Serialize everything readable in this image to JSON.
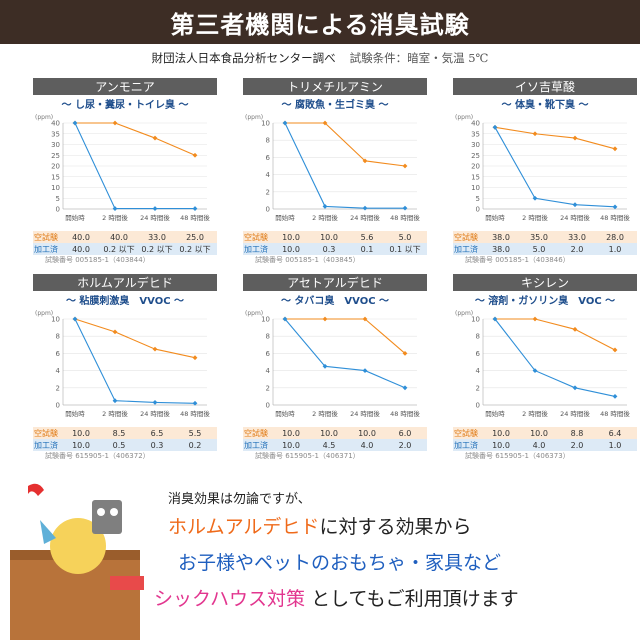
{
  "header": {
    "title": "第三者機関による消臭試験"
  },
  "subtitle": {
    "org": "財団法人日本食品分析センター調べ",
    "condition": "試験条件：暗室・気温 5℃"
  },
  "legend_labels": {
    "blank": "空試験",
    "treated": "加工済"
  },
  "unit_label": "(ppm)",
  "x_labels": [
    "開始時",
    "2 時間後",
    "24 時間後",
    "48 時間後"
  ],
  "colors": {
    "blank": "#f28b1e",
    "treated": "#2f8fd8",
    "title_bg": "#5e5e5e",
    "header_bg": "#3d2d25"
  },
  "chart_data": [
    {
      "type": "line",
      "title": "アンモニア",
      "subtitle": "～ し尿・糞尿・トイレ臭 ～",
      "ylim": [
        0,
        40
      ],
      "yticks": [
        0,
        5,
        10,
        15,
        20,
        25,
        30,
        35,
        40
      ],
      "categories": [
        "開始時",
        "2 時間後",
        "24 時間後",
        "48 時間後"
      ],
      "series": [
        {
          "name": "空試験",
          "values": [
            40,
            40,
            33,
            25
          ]
        },
        {
          "name": "加工済",
          "values": [
            40,
            0.2,
            0.2,
            0.2
          ]
        }
      ],
      "blank_text": [
        "40.0",
        "40.0",
        "33.0",
        "25.0"
      ],
      "treated_text": [
        "40.0",
        "0.2 以下",
        "0.2 以下",
        "0.2 以下"
      ],
      "test_no": "試験番号 005185-1（403844）"
    },
    {
      "type": "line",
      "title": "トリメチルアミン",
      "subtitle": "～ 腐敗魚・生ゴミ臭 ～",
      "ylim": [
        0,
        10
      ],
      "yticks": [
        0,
        2,
        4,
        6,
        8,
        10
      ],
      "categories": [
        "開始時",
        "2 時間後",
        "24 時間後",
        "48 時間後"
      ],
      "series": [
        {
          "name": "空試験",
          "values": [
            10,
            10,
            5.6,
            5.0
          ]
        },
        {
          "name": "加工済",
          "values": [
            10,
            0.3,
            0.1,
            0.1
          ]
        }
      ],
      "blank_text": [
        "10.0",
        "10.0",
        "5.6",
        "5.0"
      ],
      "treated_text": [
        "10.0",
        "0.3",
        "0.1",
        "0.1 以下"
      ],
      "test_no": "試験番号 005185-1（403845）"
    },
    {
      "type": "line",
      "title": "イソ吉草酸",
      "subtitle": "～ 体臭・靴下臭 ～",
      "ylim": [
        0,
        40
      ],
      "yticks": [
        0,
        5,
        10,
        15,
        20,
        25,
        30,
        35,
        40
      ],
      "categories": [
        "開始時",
        "2 時間後",
        "24 時間後",
        "48 時間後"
      ],
      "series": [
        {
          "name": "空試験",
          "values": [
            38,
            35,
            33,
            28
          ]
        },
        {
          "name": "加工済",
          "values": [
            38,
            5,
            2,
            1
          ]
        }
      ],
      "blank_text": [
        "38.0",
        "35.0",
        "33.0",
        "28.0"
      ],
      "treated_text": [
        "38.0",
        "5.0",
        "2.0",
        "1.0"
      ],
      "test_no": "試験番号 005185-1（403846）"
    },
    {
      "type": "line",
      "title": "ホルムアルデヒド",
      "subtitle": "～ 粘膜刺激臭　VVOC ～",
      "ylim": [
        0,
        10
      ],
      "yticks": [
        0,
        2,
        4,
        6,
        8,
        10
      ],
      "categories": [
        "開始時",
        "2 時間後",
        "24 時間後",
        "48 時間後"
      ],
      "series": [
        {
          "name": "空試験",
          "values": [
            10,
            8.5,
            6.5,
            5.5
          ]
        },
        {
          "name": "加工済",
          "values": [
            10,
            0.5,
            0.3,
            0.2
          ]
        }
      ],
      "blank_text": [
        "10.0",
        "8.5",
        "6.5",
        "5.5"
      ],
      "treated_text": [
        "10.0",
        "0.5",
        "0.3",
        "0.2"
      ],
      "test_no": "試験番号 615905-1（406372）"
    },
    {
      "type": "line",
      "title": "アセトアルデヒド",
      "subtitle": "～ タバコ臭　VVOC ～",
      "ylim": [
        0,
        10
      ],
      "yticks": [
        0,
        2,
        4,
        6,
        8,
        10
      ],
      "categories": [
        "開始時",
        "2 時間後",
        "24 時間後",
        "48 時間後"
      ],
      "series": [
        {
          "name": "空試験",
          "values": [
            10,
            10,
            10,
            6
          ]
        },
        {
          "name": "加工済",
          "values": [
            10,
            4.5,
            4,
            2
          ]
        }
      ],
      "blank_text": [
        "10.0",
        "10.0",
        "10.0",
        "6.0"
      ],
      "treated_text": [
        "10.0",
        "4.5",
        "4.0",
        "2.0"
      ],
      "test_no": "試験番号 615905-1（406371）"
    },
    {
      "type": "line",
      "title": "キシレン",
      "subtitle": "～ 溶剤・ガソリン臭　VOC ～",
      "ylim": [
        0,
        10
      ],
      "yticks": [
        0,
        2,
        4,
        6,
        8,
        10
      ],
      "categories": [
        "開始時",
        "2 時間後",
        "24 時間後",
        "48 時間後"
      ],
      "series": [
        {
          "name": "空試験",
          "values": [
            10,
            10,
            8.8,
            6.4
          ]
        },
        {
          "name": "加工済",
          "values": [
            10,
            4,
            2,
            1
          ]
        }
      ],
      "blank_text": [
        "10.0",
        "10.0",
        "8.8",
        "6.4"
      ],
      "treated_text": [
        "10.0",
        "4.0",
        "2.0",
        "1.0"
      ],
      "test_no": "試験番号 615905-1（406373）"
    }
  ],
  "message": {
    "line1": "消臭効果は勿論ですが、",
    "line2_a": "ホルムアルデヒド",
    "line2_b": "に対する効果から",
    "line3": "お子様やペットのおもちゃ・家具など",
    "line4_a": "シックハウス対策",
    "line4_b": "としてもご利用頂けます"
  }
}
